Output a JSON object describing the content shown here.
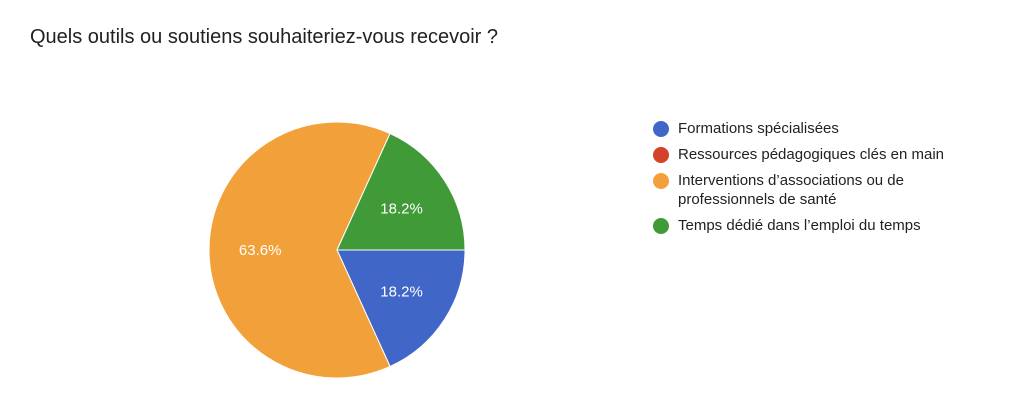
{
  "title": "Quels outils ou soutiens souhaiteriez-vous recevoir ?",
  "chart_data": {
    "type": "pie",
    "title": "Quels outils ou soutiens souhaiteriez-vous recevoir ?",
    "legend_position": "right",
    "slices": [
      {
        "label": "Formations spécialisées",
        "value": 18.2,
        "display": "18.2%",
        "color": "#4066c8"
      },
      {
        "label": "Ressources pédagogiques clés en main",
        "value": 0,
        "display": "",
        "color": "#d4422a"
      },
      {
        "label": "Interventions d’associations ou de professionnels de santé",
        "value": 63.6,
        "display": "63.6%",
        "color": "#f2a13a"
      },
      {
        "label": "Temps dédié dans l’emploi du temps",
        "value": 18.2,
        "display": "18.2%",
        "color": "#3f9a37"
      }
    ]
  }
}
